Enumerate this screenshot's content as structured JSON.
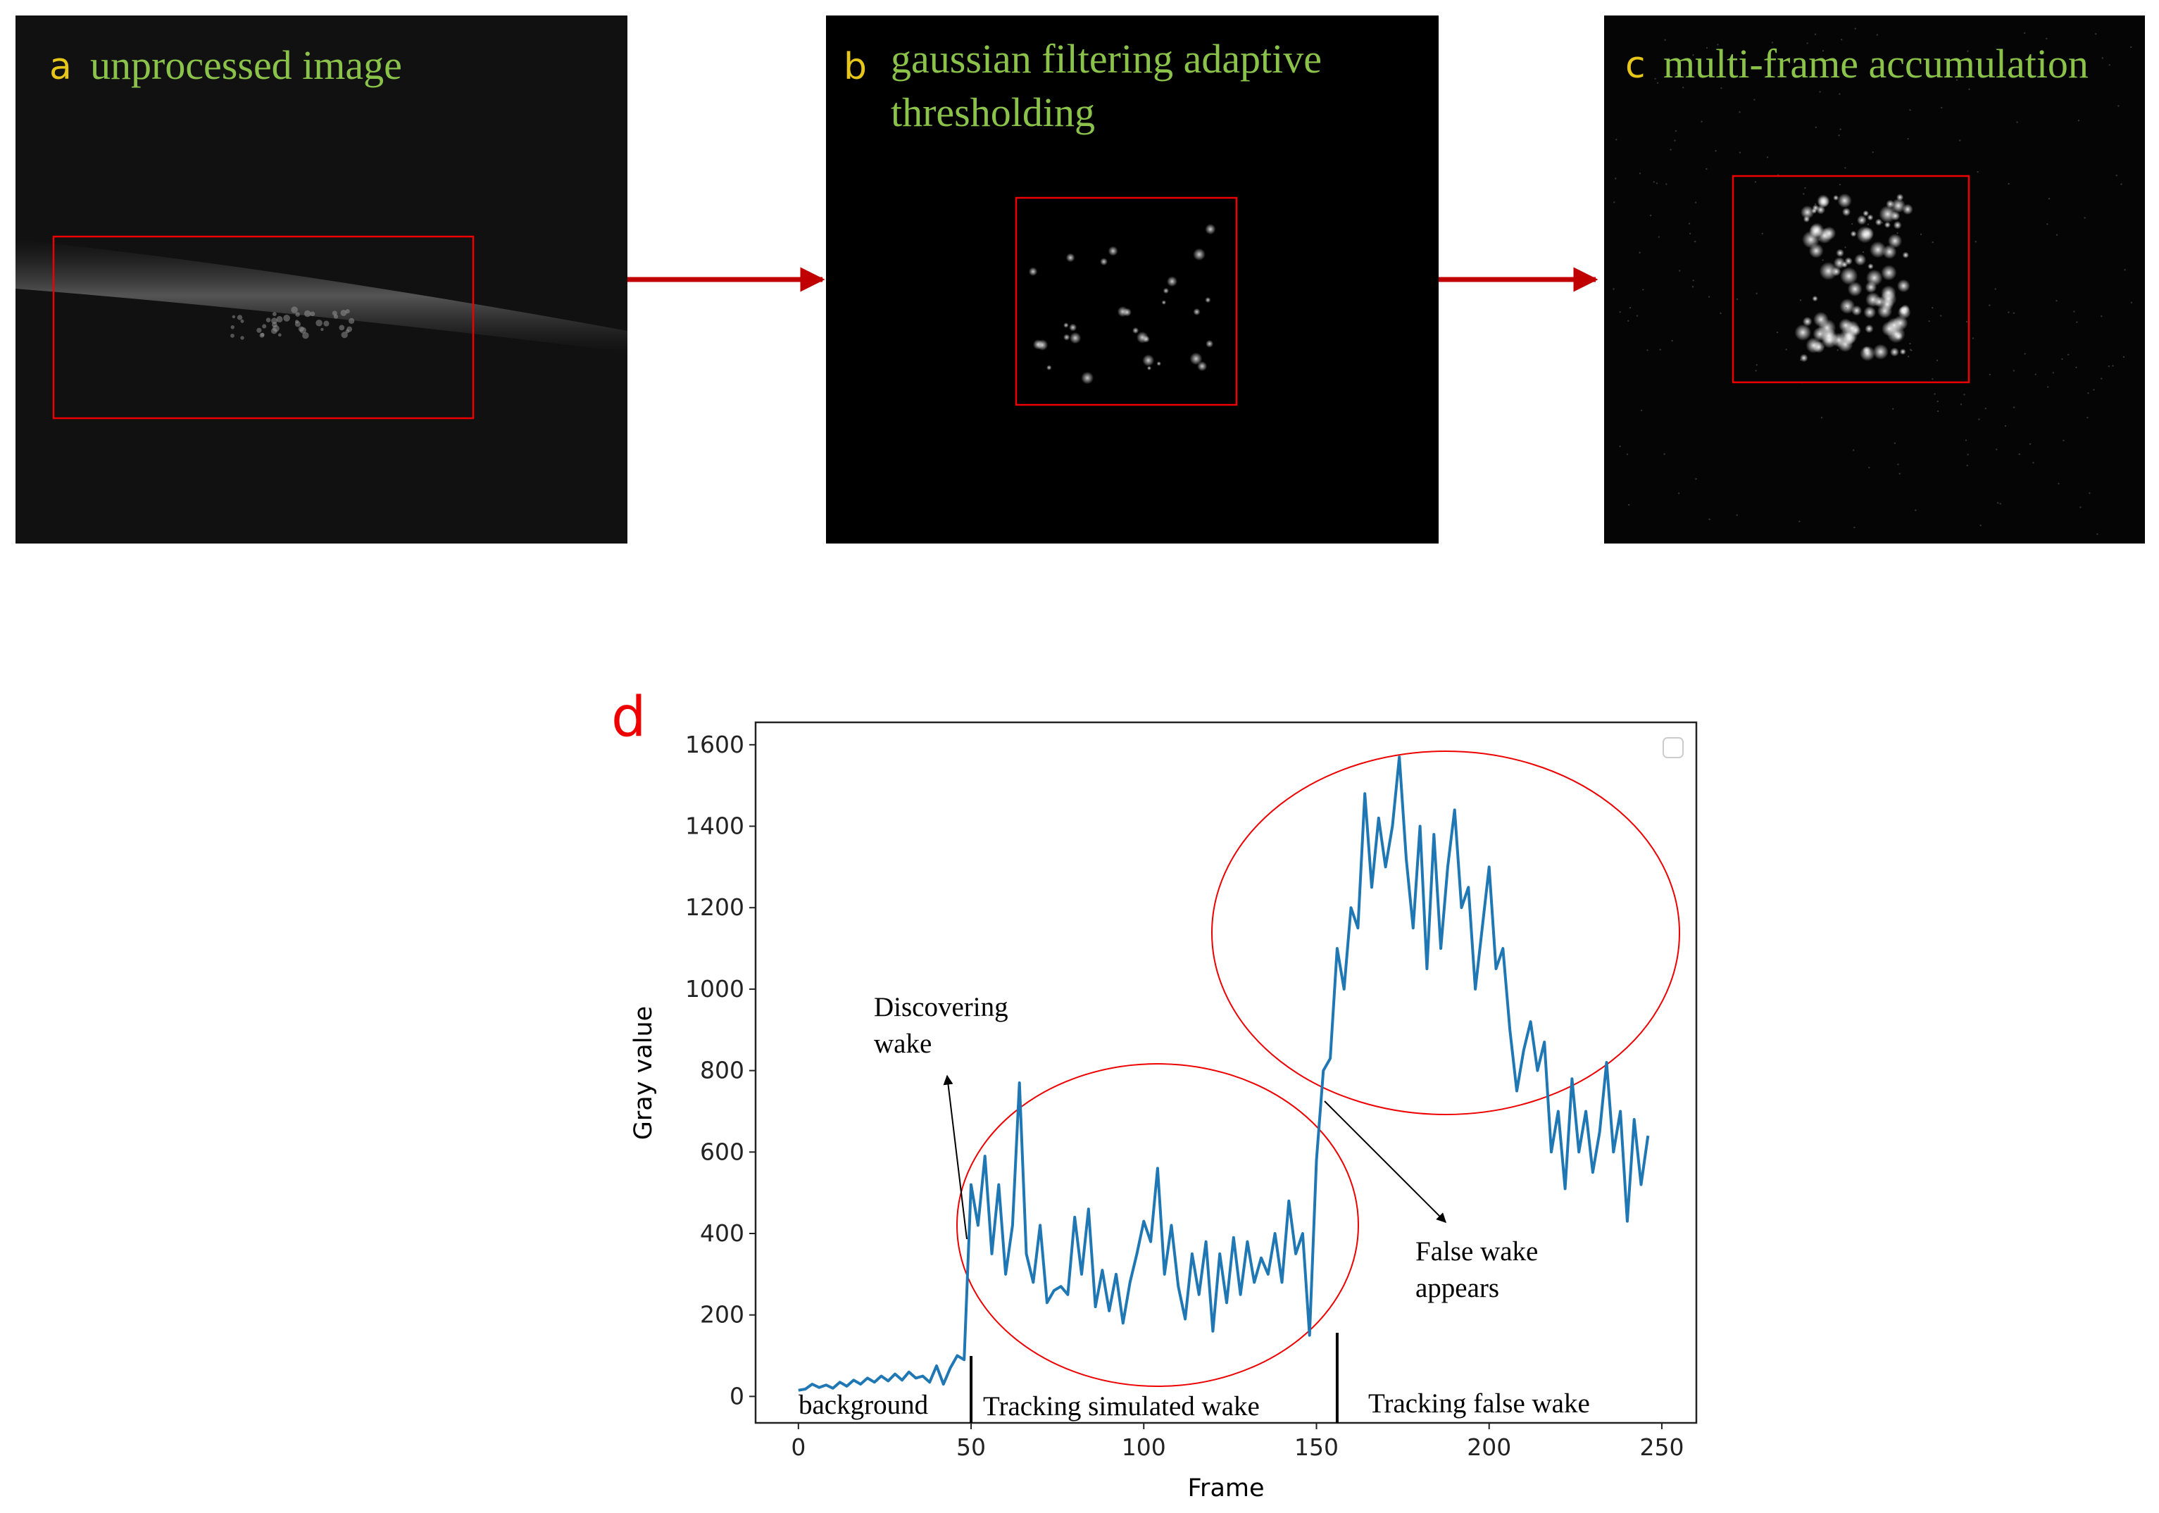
{
  "panels": [
    {
      "letter": "a",
      "label": "unprocessed image"
    },
    {
      "letter": "b",
      "label": "gaussian filtering adaptive thresholding"
    },
    {
      "letter": "c",
      "label": "multi-frame accumulation"
    }
  ],
  "chart_data": {
    "type": "line",
    "panel_letter": "d",
    "xlabel": "Frame",
    "ylabel": "Gray value",
    "xlim": [
      -12.4,
      260
    ],
    "ylim": [
      -65,
      1655
    ],
    "xticks": [
      0,
      50,
      100,
      150,
      200,
      250
    ],
    "yticks": [
      0,
      200,
      400,
      600,
      800,
      1000,
      1200,
      1400,
      1600
    ],
    "x": [
      0,
      2,
      4,
      6,
      8,
      10,
      12,
      14,
      16,
      18,
      20,
      22,
      24,
      26,
      28,
      30,
      32,
      34,
      36,
      38,
      40,
      42,
      44,
      46,
      48,
      50,
      52,
      54,
      56,
      58,
      60,
      62,
      64,
      66,
      68,
      70,
      72,
      74,
      76,
      78,
      80,
      82,
      84,
      86,
      88,
      90,
      92,
      94,
      96,
      98,
      100,
      102,
      104,
      106,
      108,
      110,
      112,
      114,
      116,
      118,
      120,
      122,
      124,
      126,
      128,
      130,
      132,
      134,
      136,
      138,
      140,
      142,
      144,
      146,
      148,
      150,
      152,
      154,
      156,
      158,
      160,
      162,
      164,
      166,
      168,
      170,
      172,
      174,
      176,
      178,
      180,
      182,
      184,
      186,
      188,
      190,
      192,
      194,
      196,
      198,
      200,
      202,
      204,
      206,
      208,
      210,
      212,
      214,
      216,
      218,
      220,
      222,
      224,
      226,
      228,
      230,
      232,
      234,
      236,
      238,
      240,
      242,
      244,
      246
    ],
    "series": [
      {
        "color": "#1f77b4",
        "values": [
          15,
          18,
          30,
          22,
          28,
          20,
          35,
          25,
          40,
          30,
          45,
          35,
          50,
          38,
          55,
          40,
          60,
          45,
          50,
          35,
          75,
          30,
          70,
          100,
          90,
          520,
          420,
          590,
          350,
          520,
          300,
          420,
          770,
          350,
          280,
          420,
          230,
          260,
          270,
          250,
          440,
          300,
          460,
          220,
          310,
          210,
          300,
          180,
          280,
          350,
          430,
          380,
          560,
          300,
          420,
          270,
          190,
          350,
          250,
          380,
          160,
          350,
          230,
          390,
          250,
          380,
          280,
          340,
          300,
          400,
          280,
          480,
          350,
          400,
          150,
          580,
          800,
          830,
          1100,
          1000,
          1200,
          1150,
          1480,
          1250,
          1420,
          1300,
          1400,
          1570,
          1320,
          1150,
          1400,
          1050,
          1380,
          1100,
          1300,
          1440,
          1200,
          1250,
          1000,
          1150,
          1300,
          1050,
          1100,
          900,
          750,
          850,
          920,
          800,
          870,
          600,
          700,
          510,
          780,
          600,
          700,
          550,
          650,
          820,
          600,
          700,
          430,
          680,
          520,
          640
        ]
      }
    ],
    "dividers": [
      50,
      156
    ],
    "annotations": [
      "Discovering wake",
      "False wake appears"
    ],
    "region_labels": [
      "background",
      "Tracking simulated wake",
      "Tracking false wake"
    ]
  }
}
